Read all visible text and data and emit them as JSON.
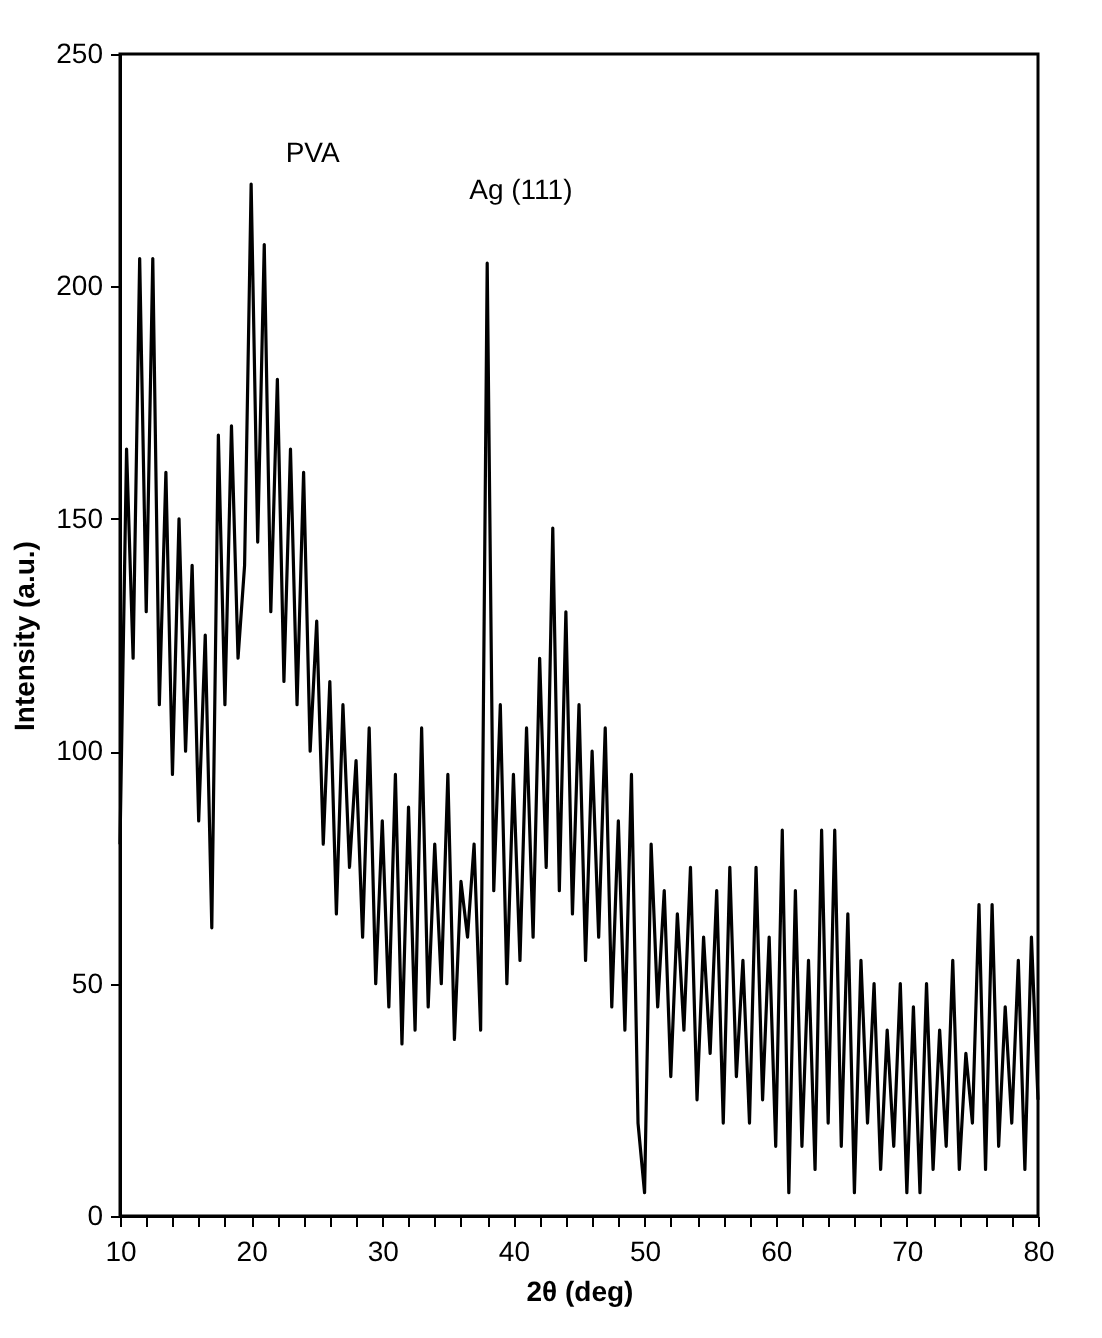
{
  "chart_data": {
    "type": "line",
    "xlabel": "2θ (deg)",
    "ylabel": "Intensity (a.u.)",
    "x": [
      10.0,
      10.5,
      11.0,
      11.5,
      12.0,
      12.5,
      13.0,
      13.5,
      14.0,
      14.5,
      15.0,
      15.5,
      16.0,
      16.5,
      17.0,
      17.5,
      18.0,
      18.5,
      19.0,
      19.5,
      20.0,
      20.5,
      21.0,
      21.5,
      22.0,
      22.5,
      23.0,
      23.5,
      24.0,
      24.5,
      25.0,
      25.5,
      26.0,
      26.5,
      27.0,
      27.5,
      28.0,
      28.5,
      29.0,
      29.5,
      30.0,
      30.5,
      31.0,
      31.5,
      32.0,
      32.5,
      33.0,
      33.5,
      34.0,
      34.5,
      35.0,
      35.5,
      36.0,
      36.5,
      37.0,
      37.5,
      38.0,
      38.5,
      39.0,
      39.5,
      40.0,
      40.5,
      41.0,
      41.5,
      42.0,
      42.5,
      43.0,
      43.5,
      44.0,
      44.5,
      45.0,
      45.5,
      46.0,
      46.5,
      47.0,
      47.5,
      48.0,
      48.5,
      49.0,
      49.5,
      50.0,
      50.5,
      51.0,
      51.5,
      52.0,
      52.5,
      53.0,
      53.5,
      54.0,
      54.5,
      55.0,
      55.5,
      56.0,
      56.5,
      57.0,
      57.5,
      58.0,
      58.5,
      59.0,
      59.5,
      60.0,
      60.5,
      61.0,
      61.5,
      62.0,
      62.5,
      63.0,
      63.5,
      64.0,
      64.5,
      65.0,
      65.5,
      66.0,
      66.5,
      67.0,
      67.5,
      68.0,
      68.5,
      69.0,
      69.5,
      70.0,
      70.5,
      71.0,
      71.5,
      72.0,
      72.5,
      73.0,
      73.5,
      74.0,
      74.5,
      75.0,
      75.5,
      76.0,
      76.5,
      77.0,
      77.5,
      78.0,
      78.5,
      79.0,
      79.5,
      80.0
    ],
    "series": [
      {
        "color": "#000000",
        "values": [
          80,
          165,
          120,
          206,
          130,
          206,
          110,
          160,
          95,
          150,
          100,
          140,
          85,
          125,
          62,
          168,
          110,
          170,
          120,
          140,
          222,
          145,
          209,
          130,
          180,
          115,
          165,
          110,
          160,
          100,
          128,
          80,
          115,
          65,
          110,
          75,
          98,
          60,
          105,
          50,
          85,
          45,
          95,
          37,
          88,
          40,
          105,
          45,
          80,
          50,
          95,
          38,
          72,
          60,
          80,
          40,
          205,
          70,
          110,
          50,
          95,
          55,
          105,
          60,
          120,
          75,
          148,
          70,
          130,
          65,
          110,
          55,
          100,
          60,
          105,
          45,
          85,
          40,
          95,
          20,
          5,
          80,
          45,
          70,
          30,
          65,
          40,
          75,
          25,
          60,
          35,
          70,
          20,
          75,
          30,
          55,
          20,
          75,
          25,
          60,
          15,
          83,
          5,
          70,
          15,
          55,
          10,
          83,
          20,
          83,
          15,
          65,
          5,
          55,
          20,
          50,
          10,
          40,
          15,
          50,
          5,
          45,
          5,
          50,
          10,
          40,
          15,
          55,
          10,
          35,
          20,
          67,
          10,
          67,
          15,
          45,
          20,
          55,
          10,
          60,
          25
        ]
      }
    ],
    "xlim": [
      10,
      80
    ],
    "ylim": [
      0,
      250
    ],
    "xticks": [
      10,
      {
        "value": 12,
        "label": null
      },
      {
        "value": 14,
        "label": null
      },
      {
        "value": 16,
        "label": null
      },
      {
        "value": 18,
        "label": null
      },
      20,
      {
        "value": 22,
        "label": null
      },
      {
        "value": 24,
        "label": null
      },
      {
        "value": 26,
        "label": null
      },
      {
        "value": 28,
        "label": null
      },
      30,
      {
        "value": 32,
        "label": null
      },
      {
        "value": 34,
        "label": null
      },
      {
        "value": 36,
        "label": null
      },
      {
        "value": 38,
        "label": null
      },
      40,
      {
        "value": 42,
        "label": null
      },
      {
        "value": 44,
        "label": null
      },
      {
        "value": 46,
        "label": null
      },
      {
        "value": 48,
        "label": null
      },
      50,
      {
        "value": 52,
        "label": null
      },
      {
        "value": 54,
        "label": null
      },
      {
        "value": 56,
        "label": null
      },
      {
        "value": 58,
        "label": null
      },
      60,
      {
        "value": 62,
        "label": null
      },
      {
        "value": 64,
        "label": null
      },
      {
        "value": 66,
        "label": null
      },
      {
        "value": 68,
        "label": null
      },
      70,
      {
        "value": 72,
        "label": null
      },
      {
        "value": 74,
        "label": null
      },
      {
        "value": 76,
        "label": null
      },
      {
        "value": 78,
        "label": null
      },
      80
    ],
    "yticks": [
      0,
      50,
      100,
      150,
      200,
      250
    ],
    "annotations": [
      "PVA",
      "Ag (111)"
    ],
    "grid": false,
    "legend": false,
    "marker": "none",
    "line_style": "solid"
  }
}
